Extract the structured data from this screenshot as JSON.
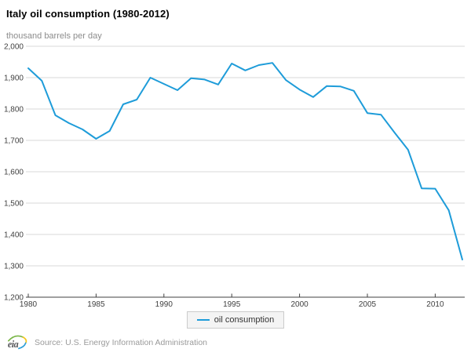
{
  "header": {
    "title": "Italy oil consumption (1980-2012)"
  },
  "chart": {
    "unit_label": "thousand barrels per day"
  },
  "legend": {
    "label": "oil consumption"
  },
  "footer": {
    "logo_icon": "eia-logo",
    "logo_text": "eia",
    "source": "Source: U.S. Energy Information Administration"
  },
  "colors": {
    "line": "#1e9cd9",
    "grid": "#d8d8d8",
    "axis": "#404040",
    "tick_label": "#404040",
    "subtitle": "#8c8c8c",
    "legend_bg": "#f4f4f4",
    "legend_border": "#cccccc",
    "source_text": "#9a9a9a"
  },
  "chart_data": {
    "type": "line",
    "title": "Italy oil consumption (1980-2012)",
    "xlabel": "",
    "ylabel": "thousand barrels per day",
    "ylim": [
      1200,
      2000
    ],
    "ytick_step": 100,
    "xticks": [
      1980,
      1985,
      1990,
      1995,
      2000,
      2005,
      2010
    ],
    "grid": true,
    "legend_position": "bottom",
    "x": [
      1980,
      1981,
      1982,
      1983,
      1984,
      1985,
      1986,
      1987,
      1988,
      1989,
      1990,
      1991,
      1992,
      1993,
      1994,
      1995,
      1996,
      1997,
      1998,
      1999,
      2000,
      2001,
      2002,
      2003,
      2004,
      2005,
      2006,
      2007,
      2008,
      2009,
      2010,
      2011,
      2012
    ],
    "series": [
      {
        "name": "oil consumption",
        "values": [
          1930,
          1890,
          1780,
          1755,
          1735,
          1705,
          1730,
          1815,
          1830,
          1900,
          1880,
          1860,
          1898,
          1894,
          1878,
          1945,
          1923,
          1940,
          1947,
          1892,
          1862,
          1838,
          1873,
          1872,
          1858,
          1787,
          1782,
          1725,
          1670,
          1547,
          1546,
          1477,
          1320
        ]
      }
    ]
  }
}
